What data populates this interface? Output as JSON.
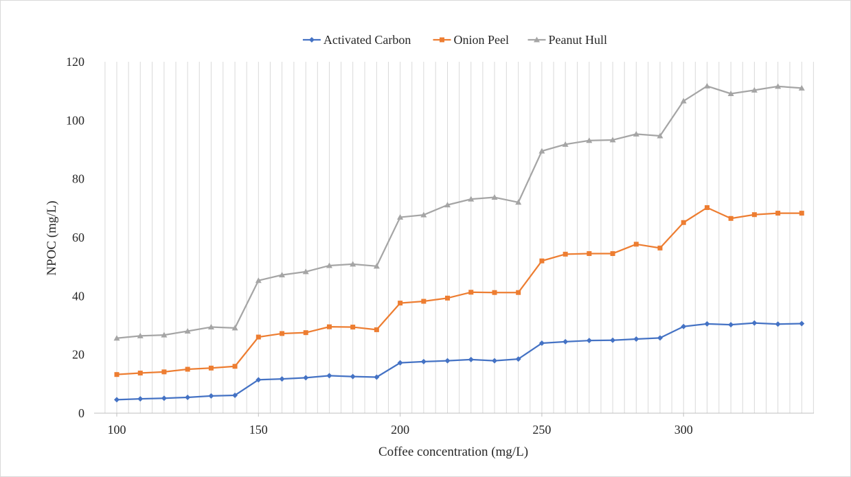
{
  "chart_data": {
    "type": "line",
    "title": "",
    "xlabel": "Coffee concentration (mg/L)",
    "ylabel": "NPOC (mg/L)",
    "xlim": [
      92,
      346
    ],
    "ylim": [
      0,
      120
    ],
    "x_ticks": [
      100,
      150,
      200,
      250,
      300
    ],
    "y_ticks": [
      0,
      20,
      40,
      60,
      80,
      100,
      120
    ],
    "grid": "vertical",
    "legend_position": "top",
    "x": [
      100,
      108.3,
      116.7,
      125,
      133.3,
      141.7,
      150,
      158.3,
      166.7,
      175,
      183.3,
      191.7,
      200,
      208.3,
      216.7,
      225,
      233.3,
      241.7,
      250,
      258.3,
      266.7,
      275,
      283.3,
      291.7,
      300,
      308.3,
      316.7,
      325,
      333.3,
      341.7
    ],
    "series": [
      {
        "name": "Activated Carbon",
        "color": "#4472c4",
        "marker": "diamond",
        "values": [
          4.6,
          4.9,
          5.1,
          5.4,
          5.9,
          6.1,
          11.4,
          11.7,
          12.1,
          12.8,
          12.5,
          12.3,
          17.2,
          17.6,
          17.9,
          18.3,
          17.9,
          18.5,
          23.9,
          24.4,
          24.8,
          24.9,
          25.3,
          25.7,
          29.6,
          30.5,
          30.2,
          30.8,
          30.4,
          30.6
        ]
      },
      {
        "name": "Onion Peel",
        "color": "#ed7d31",
        "marker": "square",
        "values": [
          13.2,
          13.7,
          14.1,
          15.0,
          15.4,
          16.0,
          26.0,
          27.2,
          27.5,
          29.5,
          29.4,
          28.5,
          37.6,
          38.2,
          39.3,
          41.3,
          41.2,
          41.2,
          52.0,
          54.3,
          54.5,
          54.5,
          57.7,
          56.4,
          65.1,
          70.2,
          66.5,
          67.8,
          68.3,
          68.3
        ]
      },
      {
        "name": "Peanut Hull",
        "color": "#a5a5a5",
        "marker": "triangle",
        "values": [
          25.6,
          26.4,
          26.7,
          28.0,
          29.4,
          29.1,
          45.3,
          47.2,
          48.3,
          50.4,
          50.9,
          50.2,
          66.9,
          67.7,
          71.1,
          73.1,
          73.7,
          72.0,
          89.5,
          91.8,
          93.1,
          93.3,
          95.3,
          94.7,
          106.6,
          111.7,
          109.1,
          110.3,
          111.6,
          111.0
        ]
      }
    ]
  }
}
